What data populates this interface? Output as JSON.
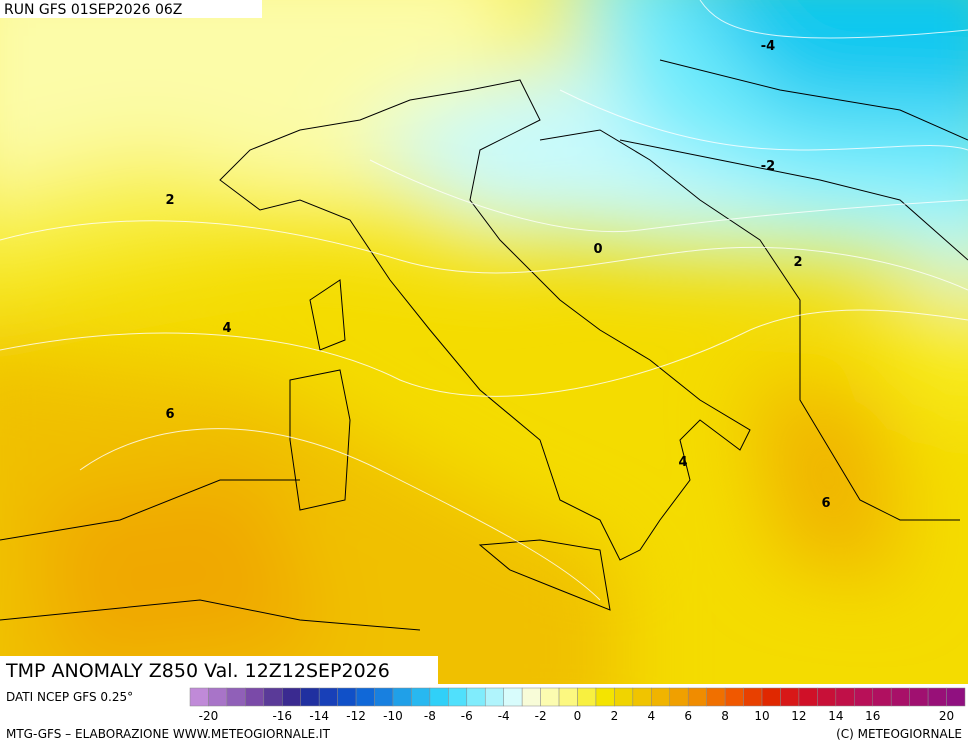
{
  "header": {
    "run": "RUN GFS 01SEP2026 06Z"
  },
  "contour_labels": [
    -4,
    -2,
    0,
    2,
    2,
    4,
    6,
    4,
    6
  ],
  "footer": {
    "title": "TMP ANOMALY Z850 Val. 12Z12SEP2026",
    "source": "DATI NCEP GFS 0.25°",
    "credit": "MTG-GFS – ELABORAZIONE WWW.METEOGIORNALE.IT",
    "copyright": "(C) METEOGIORNALE"
  },
  "colorbar": {
    "ticks": [
      -20,
      -16,
      -14,
      -12,
      -10,
      -8,
      -6,
      -4,
      -2,
      0,
      2,
      4,
      6,
      8,
      10,
      12,
      14,
      16,
      20
    ],
    "colors": [
      "#c08ad8",
      "#a874c8",
      "#9060b8",
      "#7a4aa8",
      "#5a3a98",
      "#3a2a90",
      "#2030a0",
      "#1840b8",
      "#1050c8",
      "#1068d8",
      "#1880e0",
      "#20a0e8",
      "#28b8f0",
      "#30d0f8",
      "#50e0fc",
      "#80ecfc",
      "#b0f4fc",
      "#d8fcfc",
      "#f8fcd8",
      "#fcfcb0",
      "#fcf880",
      "#f8f040",
      "#f4e400",
      "#f0d400",
      "#f0c400",
      "#f0b400",
      "#f0a000",
      "#f08c00",
      "#f07000",
      "#f05800",
      "#e84000",
      "#e02800",
      "#d81818",
      "#d01028",
      "#c81038",
      "#c01048",
      "#b81058",
      "#b01060",
      "#a81068",
      "#a01070",
      "#981078",
      "#901080"
    ]
  }
}
